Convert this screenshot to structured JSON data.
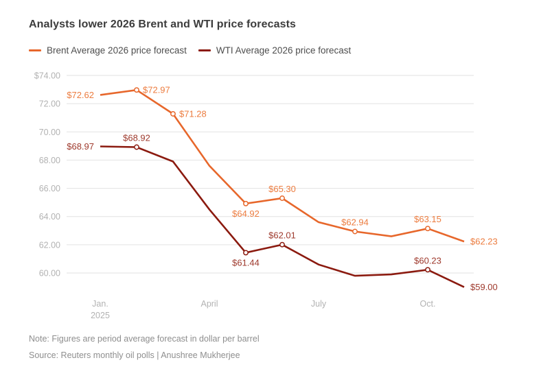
{
  "title": "Analysts lower 2026 Brent and WTI price forecasts",
  "note": "Note: Figures are period average forecast in dollar per barrel",
  "source": "Source: Reuters monthly oil polls | Anushree Mukherjee",
  "colors": {
    "background": "#ffffff",
    "title_text": "#3c3c3c",
    "legend_text": "#4d4d4d",
    "footer_text": "#8e8e8e",
    "brent": "#e7672b",
    "wti": "#8b1a0f"
  },
  "chart_data": {
    "type": "line",
    "title": "Analysts lower 2026 Brent and WTI price forecasts",
    "xlabel": "",
    "ylabel": "",
    "unit_note": "dollar per barrel",
    "grid": true,
    "grid_color": "#e2e2e2",
    "axis_label_color": "#b2b2b2",
    "legend_position": "top-left",
    "ylim": [
      60,
      74
    ],
    "y_ticks": [
      {
        "value": 74,
        "label": "$74.00"
      },
      {
        "value": 72,
        "label": "72.00"
      },
      {
        "value": 70,
        "label": "70.00"
      },
      {
        "value": 68,
        "label": "68.00"
      },
      {
        "value": 66,
        "label": "66.00"
      },
      {
        "value": 64,
        "label": "64.00"
      },
      {
        "value": 62,
        "label": "62.00"
      },
      {
        "value": 60,
        "label": "60.00"
      }
    ],
    "x_tick_labels": [
      {
        "text": "Jan.",
        "sub": "2025",
        "month_index": 0
      },
      {
        "text": "April",
        "month_index": 3
      },
      {
        "text": "July",
        "month_index": 6
      },
      {
        "text": "Oct.",
        "month_index": 9
      }
    ],
    "series": [
      {
        "id": "brent",
        "name": "Brent Average 2026 price forecast",
        "color": "#e7672b",
        "label_color": "#ec7c3f",
        "points": [
          {
            "month": "Jan 2025",
            "value": 72.62,
            "label": "$72.62",
            "label_pos": "left",
            "marker": false
          },
          {
            "month": "Feb 2025",
            "value": 72.97,
            "label": "$72.97",
            "label_pos": "right",
            "marker": true
          },
          {
            "month": "Mar 2025",
            "value": 71.28,
            "label": "$71.28",
            "label_pos": "right",
            "marker": true
          },
          {
            "month": "Apr 2025",
            "value": 67.6,
            "label": null,
            "marker": false,
            "approx": true
          },
          {
            "month": "May 2025",
            "value": 64.92,
            "label": "$64.92",
            "label_pos": "below",
            "marker": true
          },
          {
            "month": "Jun 2025",
            "value": 65.3,
            "label": "$65.30",
            "label_pos": "above",
            "marker": true
          },
          {
            "month": "Jul 2025",
            "value": 63.6,
            "label": null,
            "marker": false,
            "approx": true
          },
          {
            "month": "Aug 2025",
            "value": 62.94,
            "label": "$62.94",
            "label_pos": "above",
            "marker": true
          },
          {
            "month": "Sep 2025",
            "value": 62.6,
            "label": null,
            "marker": false,
            "approx": true
          },
          {
            "month": "Oct 2025",
            "value": 63.15,
            "label": "$63.15",
            "label_pos": "above",
            "marker": true
          },
          {
            "month": "Nov 2025",
            "value": 62.23,
            "label": "$62.23",
            "label_pos": "right",
            "marker": false
          }
        ]
      },
      {
        "id": "wti",
        "name": "WTI Average 2026 price forecast",
        "color": "#8b1a0f",
        "label_color": "#9e392c",
        "points": [
          {
            "month": "Jan 2025",
            "value": 68.97,
            "label": "$68.97",
            "label_pos": "left",
            "marker": false
          },
          {
            "month": "Feb 2025",
            "value": 68.92,
            "label": "$68.92",
            "label_pos": "above",
            "marker": true
          },
          {
            "month": "Mar 2025",
            "value": 67.9,
            "label": null,
            "marker": false,
            "approx": true
          },
          {
            "month": "Apr 2025",
            "value": 64.5,
            "label": null,
            "marker": false,
            "approx": true
          },
          {
            "month": "May 2025",
            "value": 61.44,
            "label": "$61.44",
            "label_pos": "below",
            "marker": true
          },
          {
            "month": "Jun 2025",
            "value": 62.01,
            "label": "$62.01",
            "label_pos": "above",
            "marker": true
          },
          {
            "month": "Jul 2025",
            "value": 60.6,
            "label": null,
            "marker": false,
            "approx": true
          },
          {
            "month": "Aug 2025",
            "value": 59.8,
            "label": null,
            "marker": false,
            "approx": true
          },
          {
            "month": "Sep 2025",
            "value": 59.9,
            "label": null,
            "marker": false,
            "approx": true
          },
          {
            "month": "Oct 2025",
            "value": 60.23,
            "label": "$60.23",
            "label_pos": "above",
            "marker": true
          },
          {
            "month": "Nov 2025",
            "value": 59.0,
            "label": "$59.00",
            "label_pos": "right",
            "marker": false
          }
        ]
      }
    ]
  }
}
